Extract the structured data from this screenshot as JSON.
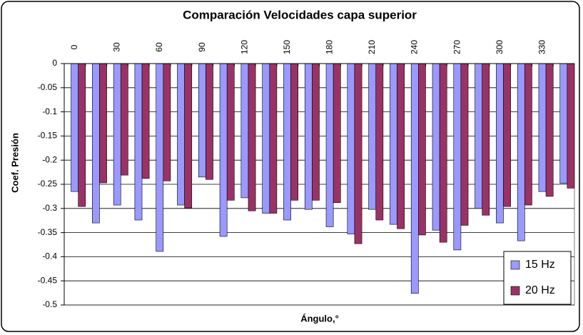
{
  "chart_data": {
    "type": "bar",
    "title": "Comparación Velocidades capa superior",
    "x_label": "Ángulo,°",
    "y_label": "Coef. Presión",
    "categories": [
      "0",
      null,
      "30",
      null,
      "60",
      null,
      "90",
      null,
      "120",
      null,
      "150",
      null,
      "180",
      null,
      "210",
      null,
      "240",
      null,
      "270",
      null,
      "300",
      null,
      "330",
      null
    ],
    "series": [
      {
        "name": "15 Hz",
        "color": "#9999ff",
        "values": [
          -0.265,
          -0.33,
          -0.293,
          -0.324,
          -0.389,
          -0.293,
          -0.235,
          -0.358,
          -0.278,
          -0.31,
          -0.324,
          -0.302,
          -0.338,
          -0.353,
          -0.302,
          -0.333,
          -0.476,
          -0.345,
          -0.386,
          -0.3,
          -0.33,
          -0.367,
          -0.265,
          -0.248
        ]
      },
      {
        "name": "20 Hz",
        "color": "#993366",
        "values": [
          -0.296,
          -0.247,
          -0.231,
          -0.238,
          -0.243,
          -0.299,
          -0.24,
          -0.283,
          -0.305,
          -0.31,
          -0.283,
          -0.283,
          -0.288,
          -0.373,
          -0.324,
          -0.342,
          -0.355,
          -0.37,
          -0.335,
          -0.314,
          -0.296,
          -0.293,
          -0.275,
          -0.258
        ]
      }
    ],
    "ylim": [
      -0.5,
      0
    ],
    "yticks": [
      0,
      -0.05,
      -0.1,
      -0.15,
      -0.2,
      -0.25,
      -0.3,
      -0.35,
      -0.4,
      -0.45,
      -0.5
    ],
    "grid": true,
    "legend": "bottom-right"
  }
}
